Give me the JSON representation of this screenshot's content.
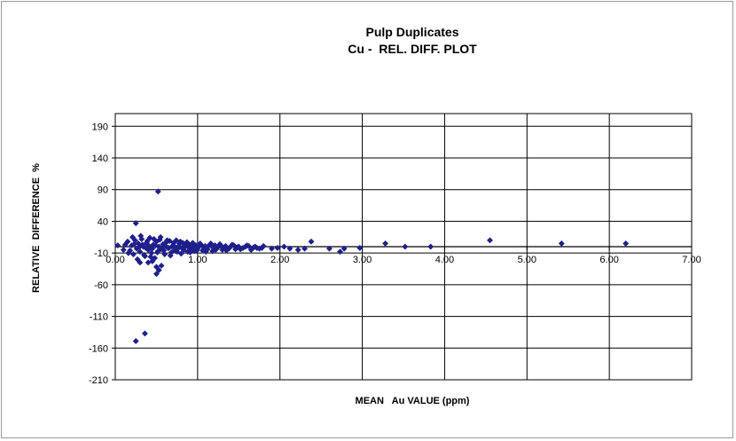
{
  "chart_data": {
    "type": "scatter",
    "title": "Pulp Duplicates",
    "subtitle": "Cu -  REL. DIFF. PLOT",
    "xlabel": "MEAN   Au VALUE (ppm)",
    "ylabel": "RELATIVE  DIFFERENCE  %",
    "xlim": [
      0,
      7
    ],
    "ylim": [
      -210,
      210
    ],
    "x_ticks": [
      "0.00",
      "1.00",
      "2.00",
      "3.00",
      "4.00",
      "5.00",
      "6.00",
      "7.00"
    ],
    "y_ticks": [
      "190",
      "140",
      "90",
      "40",
      "-10",
      "-60",
      "-110",
      "-160",
      "-210"
    ],
    "grid": true,
    "legend": "none",
    "marker_color": "#1f1f8c",
    "marker": "diamond",
    "series": [
      {
        "points": [
          [
            0.52,
            87
          ],
          [
            0.25,
            37
          ],
          [
            0.25,
            -149
          ],
          [
            0.36,
            -137
          ],
          [
            0.5,
            -43
          ],
          [
            0.53,
            -37
          ],
          [
            0.5,
            -32
          ],
          [
            0.56,
            -30
          ],
          [
            0.4,
            -25
          ],
          [
            0.3,
            -25
          ],
          [
            0.45,
            -23
          ],
          [
            4.55,
            10
          ],
          [
            5.42,
            5
          ],
          [
            6.2,
            5
          ],
          [
            3.28,
            5
          ],
          [
            3.52,
            0
          ],
          [
            3.83,
            0
          ],
          [
            2.97,
            -2
          ],
          [
            2.78,
            -3
          ],
          [
            2.73,
            -8
          ],
          [
            2.6,
            -3
          ],
          [
            2.38,
            8
          ],
          [
            2.3,
            -3
          ],
          [
            2.22,
            -5
          ],
          [
            2.12,
            -3
          ],
          [
            2.05,
            0
          ],
          [
            1.97,
            -2
          ],
          [
            1.9,
            -3
          ],
          [
            0.03,
            2
          ],
          [
            0.1,
            -5
          ],
          [
            0.15,
            8
          ],
          [
            0.18,
            -6
          ],
          [
            0.2,
            2
          ],
          [
            0.22,
            -12
          ],
          [
            0.24,
            10
          ],
          [
            0.26,
            -3
          ],
          [
            0.28,
            5
          ],
          [
            0.3,
            -8
          ],
          [
            0.32,
            12
          ],
          [
            0.34,
            0
          ],
          [
            0.36,
            -15
          ],
          [
            0.38,
            6
          ],
          [
            0.4,
            -5
          ],
          [
            0.42,
            14
          ],
          [
            0.44,
            -10
          ],
          [
            0.46,
            3
          ],
          [
            0.48,
            -18
          ],
          [
            0.5,
            8
          ],
          [
            0.52,
            -7
          ],
          [
            0.54,
            11
          ],
          [
            0.56,
            -4
          ],
          [
            0.58,
            4
          ],
          [
            0.6,
            -12
          ],
          [
            0.62,
            7
          ],
          [
            0.64,
            -2
          ],
          [
            0.66,
            9
          ],
          [
            0.68,
            -9
          ],
          [
            0.7,
            2
          ],
          [
            0.72,
            -6
          ],
          [
            0.74,
            10
          ],
          [
            0.76,
            -3
          ],
          [
            0.78,
            5
          ],
          [
            0.8,
            -11
          ],
          [
            0.82,
            6
          ],
          [
            0.84,
            -1
          ],
          [
            0.86,
            4
          ],
          [
            0.88,
            -8
          ],
          [
            0.9,
            3
          ],
          [
            0.92,
            -4
          ],
          [
            0.94,
            6
          ],
          [
            0.96,
            -7
          ],
          [
            0.98,
            2
          ],
          [
            1.0,
            -3
          ],
          [
            1.03,
            5
          ],
          [
            1.06,
            -6
          ],
          [
            1.09,
            1
          ],
          [
            1.12,
            -4
          ],
          [
            1.15,
            3
          ],
          [
            1.18,
            -7
          ],
          [
            1.21,
            2
          ],
          [
            1.24,
            -2
          ],
          [
            1.27,
            4
          ],
          [
            1.3,
            -5
          ],
          [
            1.34,
            1
          ],
          [
            1.38,
            -3
          ],
          [
            1.42,
            3
          ],
          [
            1.46,
            -4
          ],
          [
            1.5,
            0
          ],
          [
            1.55,
            -2
          ],
          [
            1.6,
            2
          ],
          [
            1.65,
            -5
          ],
          [
            1.7,
            0
          ],
          [
            1.75,
            -3
          ],
          [
            1.8,
            1
          ],
          [
            0.12,
            3
          ],
          [
            0.16,
            -10
          ],
          [
            0.21,
            15
          ],
          [
            0.27,
            -20
          ],
          [
            0.31,
            17
          ],
          [
            0.35,
            -13
          ],
          [
            0.39,
            9
          ],
          [
            0.43,
            -16
          ],
          [
            0.47,
            12
          ],
          [
            0.51,
            -9
          ],
          [
            0.55,
            15
          ],
          [
            0.59,
            -6
          ],
          [
            0.63,
            10
          ],
          [
            0.67,
            -14
          ],
          [
            0.71,
            6
          ],
          [
            0.75,
            -8
          ],
          [
            0.79,
            8
          ],
          [
            0.83,
            -5
          ],
          [
            0.87,
            7
          ],
          [
            0.91,
            -9
          ],
          [
            0.95,
            4
          ],
          [
            0.99,
            -6
          ],
          [
            1.04,
            3
          ],
          [
            1.1,
            -8
          ],
          [
            1.16,
            5
          ],
          [
            1.22,
            -5
          ],
          [
            1.28,
            2
          ],
          [
            1.35,
            -6
          ],
          [
            1.44,
            2
          ],
          [
            1.52,
            -4
          ],
          [
            1.62,
            1
          ],
          [
            1.72,
            -2
          ],
          [
            0.23,
            4
          ],
          [
            0.29,
            -1
          ],
          [
            0.33,
            3
          ],
          [
            0.37,
            -2
          ],
          [
            0.41,
            1
          ],
          [
            0.45,
            -3
          ],
          [
            0.49,
            2
          ],
          [
            0.53,
            0
          ],
          [
            0.57,
            -1
          ],
          [
            0.61,
            1
          ],
          [
            0.65,
            -2
          ],
          [
            0.69,
            0
          ],
          [
            0.73,
            -1
          ],
          [
            0.77,
            1
          ],
          [
            0.81,
            -2
          ],
          [
            0.85,
            0
          ],
          [
            0.89,
            -1
          ],
          [
            0.93,
            1
          ],
          [
            0.97,
            -2
          ],
          [
            1.01,
            0
          ],
          [
            1.07,
            -1
          ],
          [
            1.13,
            1
          ],
          [
            1.19,
            -2
          ],
          [
            1.25,
            0
          ],
          [
            1.32,
            -1
          ],
          [
            1.4,
            0
          ],
          [
            1.48,
            -1
          ],
          [
            1.58,
            0
          ],
          [
            1.68,
            -1
          ],
          [
            1.78,
            -2
          ]
        ]
      }
    ]
  }
}
